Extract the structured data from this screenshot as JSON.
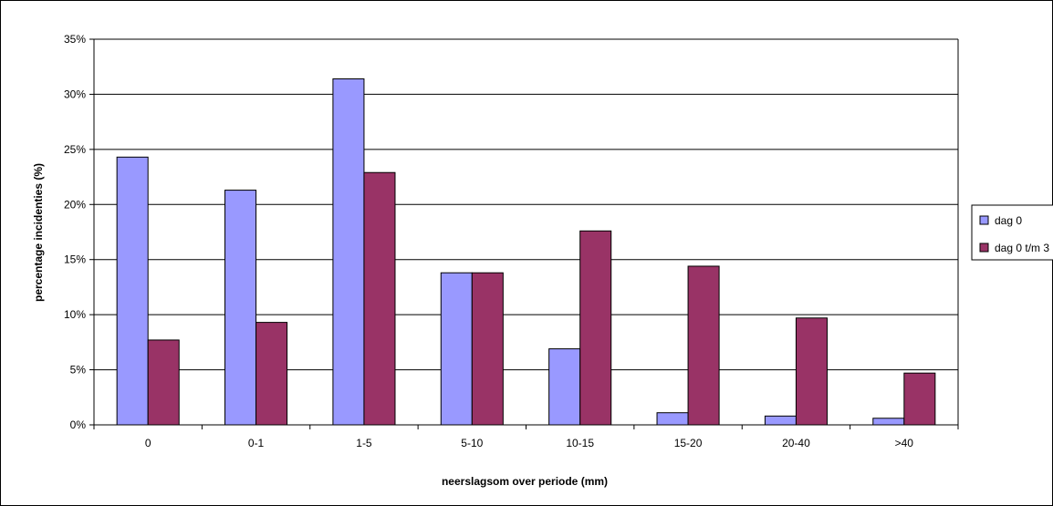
{
  "chart_data": {
    "type": "bar",
    "title": "",
    "xlabel": "neerslagsom over periode (mm)",
    "ylabel": "percentage incidenties (%)",
    "categories": [
      "0",
      "0-1",
      "1-5",
      "5-10",
      "10-15",
      "15-20",
      "20-40",
      ">40"
    ],
    "series": [
      {
        "name": "dag 0",
        "color": "#9999ff",
        "values": [
          24.3,
          21.3,
          31.4,
          13.8,
          6.9,
          1.1,
          0.8,
          0.6
        ]
      },
      {
        "name": "dag 0 t/m 3",
        "color": "#993366",
        "values": [
          7.7,
          9.3,
          22.9,
          13.8,
          17.6,
          14.4,
          9.7,
          4.7
        ]
      }
    ],
    "ylim": [
      0,
      35
    ],
    "yticks": [
      0,
      5,
      10,
      15,
      20,
      25,
      30,
      35
    ],
    "ytick_format": "%",
    "grid": true,
    "legend": "right"
  }
}
